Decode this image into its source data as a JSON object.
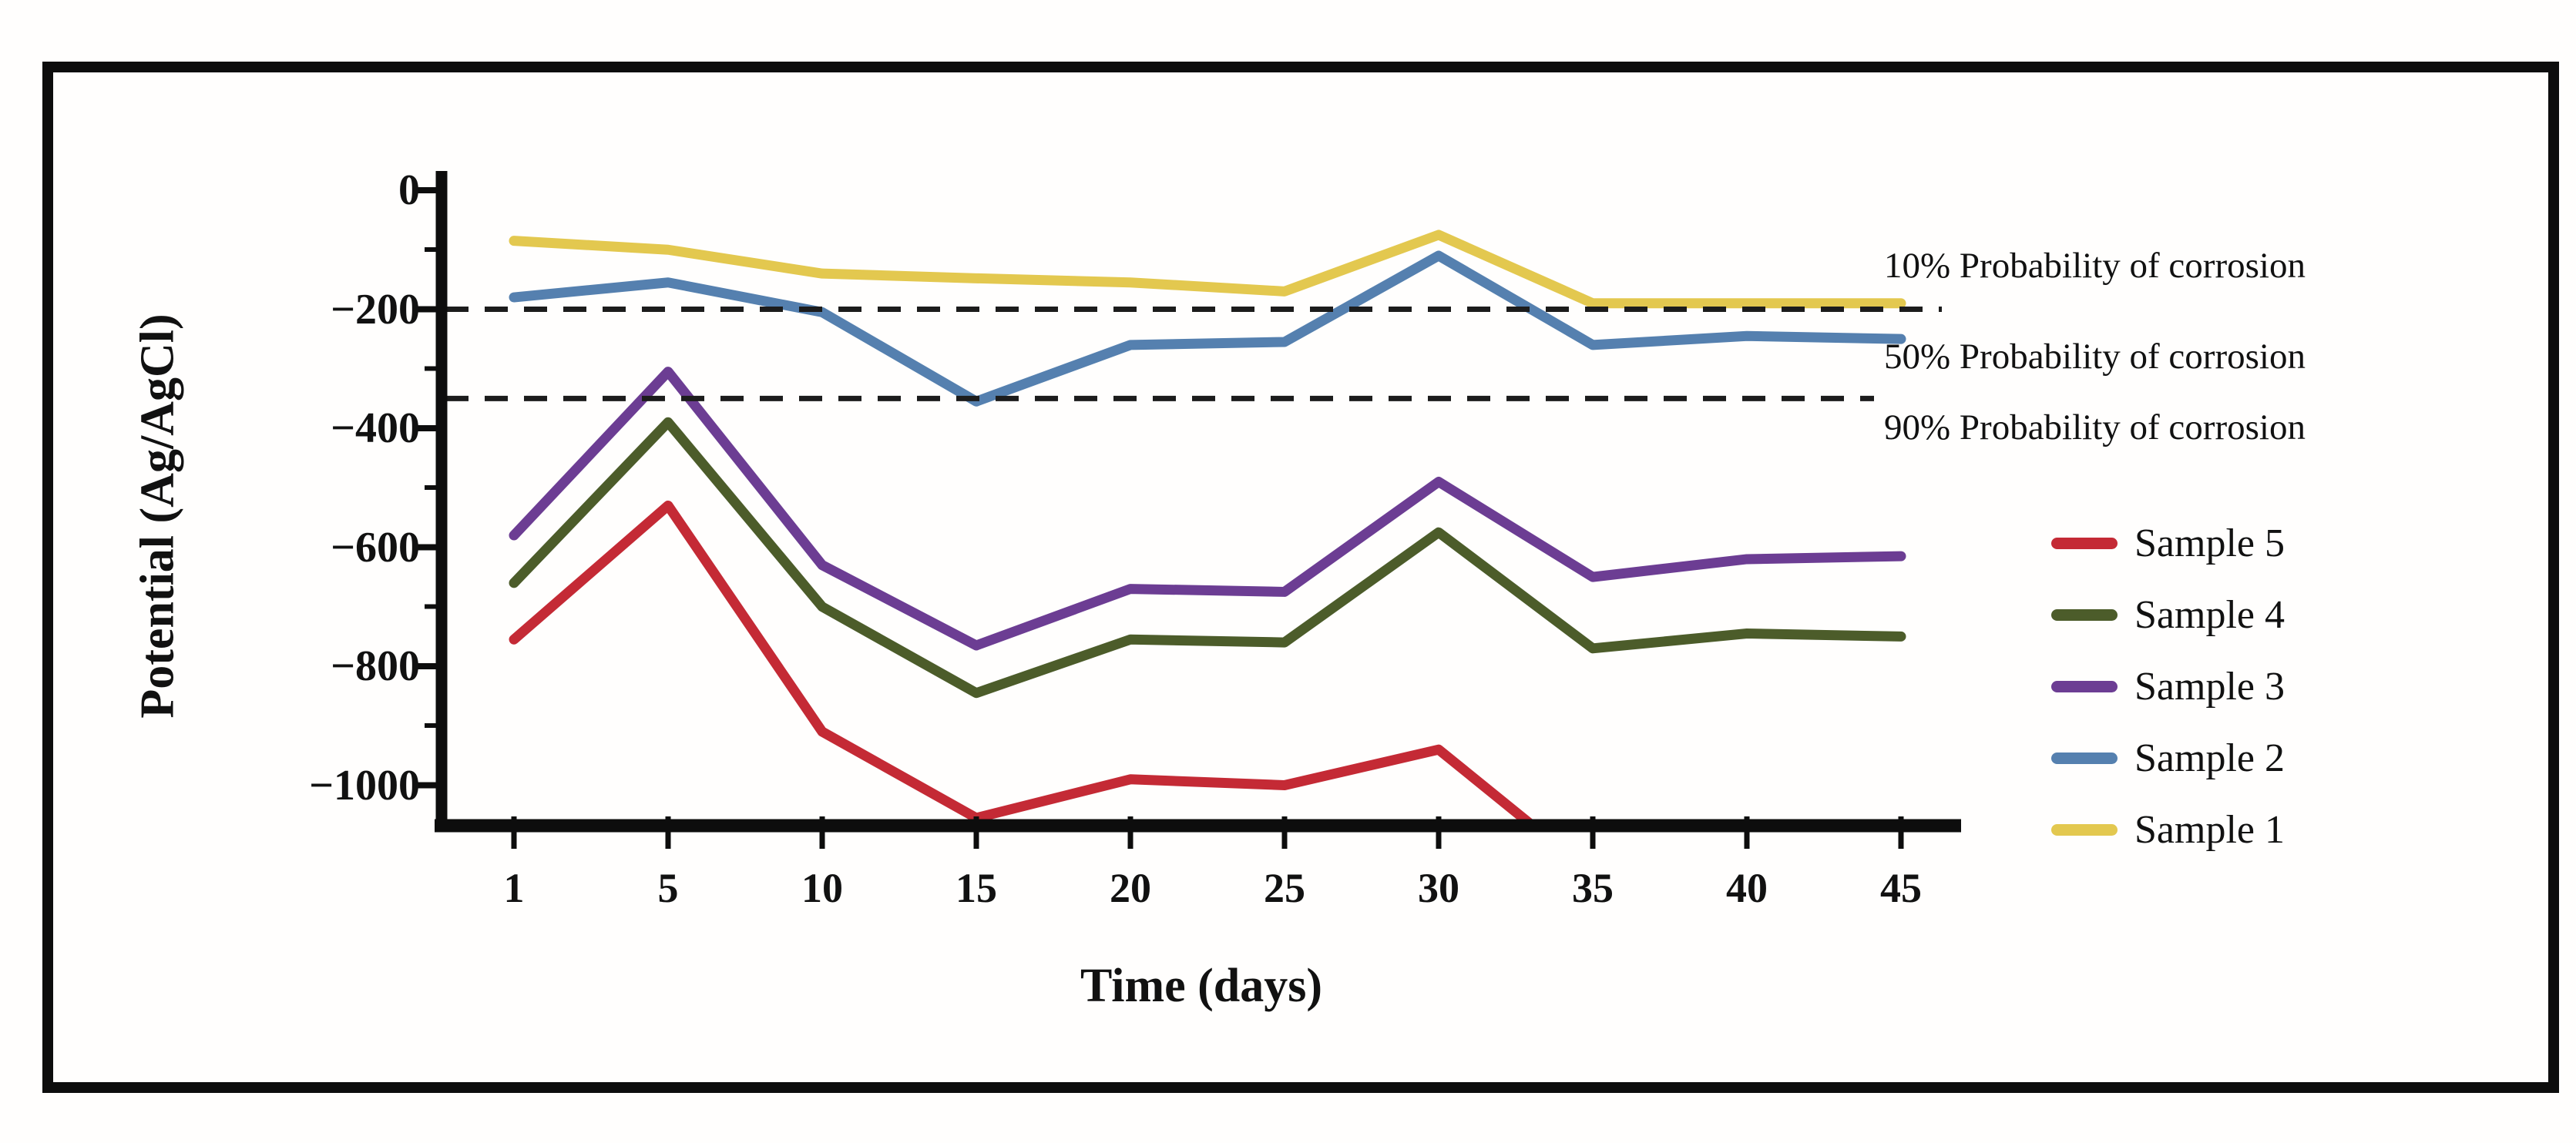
{
  "figure": {
    "y_axis_title": "Potential (Ag/AgCl)",
    "x_axis_title": "Time (days)",
    "y_tick_labels": [
      "0",
      "−200",
      "−400",
      "−600",
      "−800",
      "−1000"
    ],
    "x_tick_labels": [
      "1",
      "5",
      "10",
      "15",
      "20",
      "25",
      "30",
      "35",
      "40",
      "45"
    ]
  },
  "chart_data": {
    "type": "line",
    "title": "",
    "xlabel": "Time (days)",
    "ylabel": "Potential (Ag/AgCl)",
    "x": [
      1,
      5,
      10,
      15,
      20,
      25,
      30,
      35,
      40,
      45
    ],
    "ylim": [
      -1070,
      0
    ],
    "y_ticks": [
      0,
      -200,
      -400,
      -600,
      -800,
      -1000
    ],
    "grid": false,
    "legend_position": "right-middle",
    "series": [
      {
        "name": "Sample 5",
        "color": "#c42a35",
        "values": [
          -755,
          -530,
          -910,
          -1055,
          -990,
          -1000,
          -940,
          null,
          null,
          null
        ],
        "offscale_exit": {
          "day": 35,
          "value": -1150
        },
        "note": "line falls below the plotted range (< -1070 mV) between day 30 and day 35"
      },
      {
        "name": "Sample 4",
        "color": "#4c5c2a",
        "values": [
          -660,
          -390,
          -700,
          -845,
          -755,
          -760,
          -575,
          -770,
          -745,
          -750
        ]
      },
      {
        "name": "Sample 3",
        "color": "#6c3d93",
        "values": [
          -580,
          -305,
          -630,
          -765,
          -670,
          -675,
          -490,
          -650,
          -620,
          -615
        ]
      },
      {
        "name": "Sample 2",
        "color": "#5580af",
        "values": [
          -180,
          -155,
          -205,
          -355,
          -260,
          -255,
          -110,
          -260,
          -245,
          -250
        ]
      },
      {
        "name": "Sample 1",
        "color": "#e3c84f",
        "values": [
          -85,
          -100,
          -140,
          -148,
          -155,
          -170,
          -75,
          -190,
          -190,
          -190
        ]
      }
    ],
    "threshold_lines": [
      {
        "value": -200,
        "style": "dashed",
        "color": "#1c1c1c"
      },
      {
        "value": -350,
        "style": "dashed",
        "color": "#1c1c1c"
      }
    ],
    "annotations": [
      {
        "text": "10% Probability of corrosion",
        "position": "above -200 mV line"
      },
      {
        "text": "50% Probability of corrosion",
        "position": "between -200 and -350 mV lines"
      },
      {
        "text": "90% Probability of corrosion",
        "position": "below -350 mV line"
      }
    ],
    "legend_order": [
      "Sample 5",
      "Sample 4",
      "Sample 3",
      "Sample 2",
      "Sample 1"
    ]
  }
}
